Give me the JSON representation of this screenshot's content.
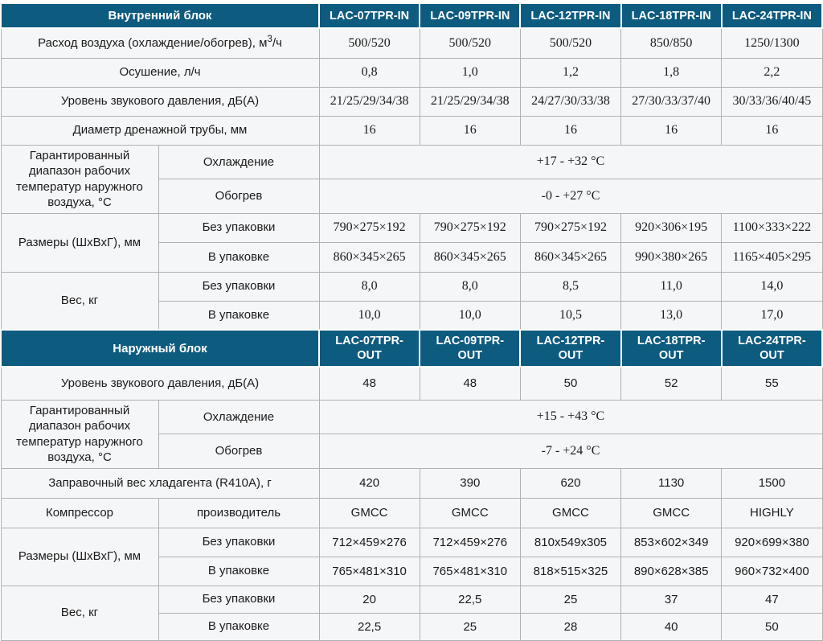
{
  "colors": {
    "header_bg": "#0e5b80",
    "header_text": "#ffffff",
    "row_bg": "#f5f6f8",
    "border": "#b1b1b1"
  },
  "indoor": {
    "title": "Внутренний блок",
    "models": [
      "LAC-07TPR-IN",
      "LAC-09TPR-IN",
      "LAC-12TPR-IN",
      "LAC-18TPR-IN",
      "LAC-24TPR-IN"
    ],
    "air_flow": {
      "label_prefix": "Расход воздуха (охлаждение/обогрев), м",
      "label_sup": "3",
      "label_suffix": "/ч",
      "values": [
        "500/520",
        "500/520",
        "500/520",
        "850/850",
        "1250/1300"
      ]
    },
    "drying": {
      "label": "Осушение, л/ч",
      "values": [
        "0,8",
        "1,0",
        "1,2",
        "1,8",
        "2,2"
      ]
    },
    "sound": {
      "label": "Уровень звукового давления, дБ(А)",
      "values": [
        "21/25/29/34/38",
        "21/25/29/34/38",
        "24/27/30/33/38",
        "27/30/33/37/40",
        "30/33/36/40/45"
      ]
    },
    "drain": {
      "label": "Диаметр дренажной трубы, мм",
      "values": [
        "16",
        "16",
        "16",
        "16",
        "16"
      ]
    },
    "temp_range": {
      "label": "Гарантированный диапазон рабочих температур наружного воздуха, °С",
      "cooling_label": "Охлаждение",
      "heating_label": "Обогрев",
      "cooling_value": "+17 - +32 °C",
      "heating_value": "-0 - +27 °C"
    },
    "dimensions": {
      "label": "Размеры (ШхВхГ), мм",
      "unpacked_label": "Без упаковки",
      "packed_label": "В упаковке",
      "unpacked": [
        "790×275×192",
        "790×275×192",
        "790×275×192",
        "920×306×195",
        "1100×333×222"
      ],
      "packed": [
        "860×345×265",
        "860×345×265",
        "860×345×265",
        "990×380×265",
        "1165×405×295"
      ]
    },
    "weight": {
      "label": "Вес, кг",
      "unpacked_label": "Без упаковки",
      "packed_label": "В упаковке",
      "unpacked": [
        "8,0",
        "8,0",
        "8,5",
        "11,0",
        "14,0"
      ],
      "packed": [
        "10,0",
        "10,0",
        "10,5",
        "13,0",
        "17,0"
      ]
    }
  },
  "outdoor": {
    "title": "Наружный блок",
    "models": [
      "LAC-07TPR-\nOUT",
      "LAC-09TPR-\nOUT",
      "LAC-12TPR-\nOUT",
      "LAC-18TPR-\nOUT",
      "LAC-24TPR-\nOUT"
    ],
    "sound": {
      "label": "Уровень звукового давления, дБ(А)",
      "values": [
        "48",
        "48",
        "50",
        "52",
        "55"
      ]
    },
    "temp_range": {
      "label": "Гарантированный диапазон рабочих температур наружного воздуха, °С",
      "cooling_label": "Охлаждение",
      "heating_label": "Обогрев",
      "cooling_value": "+15 - +43 °C",
      "heating_value": "-7 - +24 °C"
    },
    "refrigerant": {
      "label": "Заправочный вес хладагента (R410A), г",
      "values": [
        "420",
        "390",
        "620",
        "1130",
        "1500"
      ]
    },
    "compressor": {
      "label": "Компрессор",
      "sub_label": "производитель",
      "values": [
        "GMCC",
        "GMCC",
        "GMCC",
        "GMCC",
        "HIGHLY"
      ]
    },
    "dimensions": {
      "label": "Размеры (ШхВхГ), мм",
      "unpacked_label": "Без упаковки",
      "packed_label": "В упаковке",
      "unpacked": [
        "712×459×276",
        "712×459×276",
        "810x549x305",
        "853×602×349",
        "920×699×380"
      ],
      "packed": [
        "765×481×310",
        "765×481×310",
        "818×515×325",
        "890×628×385",
        "960×732×400"
      ]
    },
    "weight": {
      "label": "Вес, кг",
      "unpacked_label": "Без упаковки",
      "packed_label": "В упаковке",
      "unpacked": [
        "20",
        "22,5",
        "25",
        "37",
        "47"
      ],
      "packed": [
        "22,5",
        "25",
        "28",
        "40",
        "50"
      ]
    }
  }
}
